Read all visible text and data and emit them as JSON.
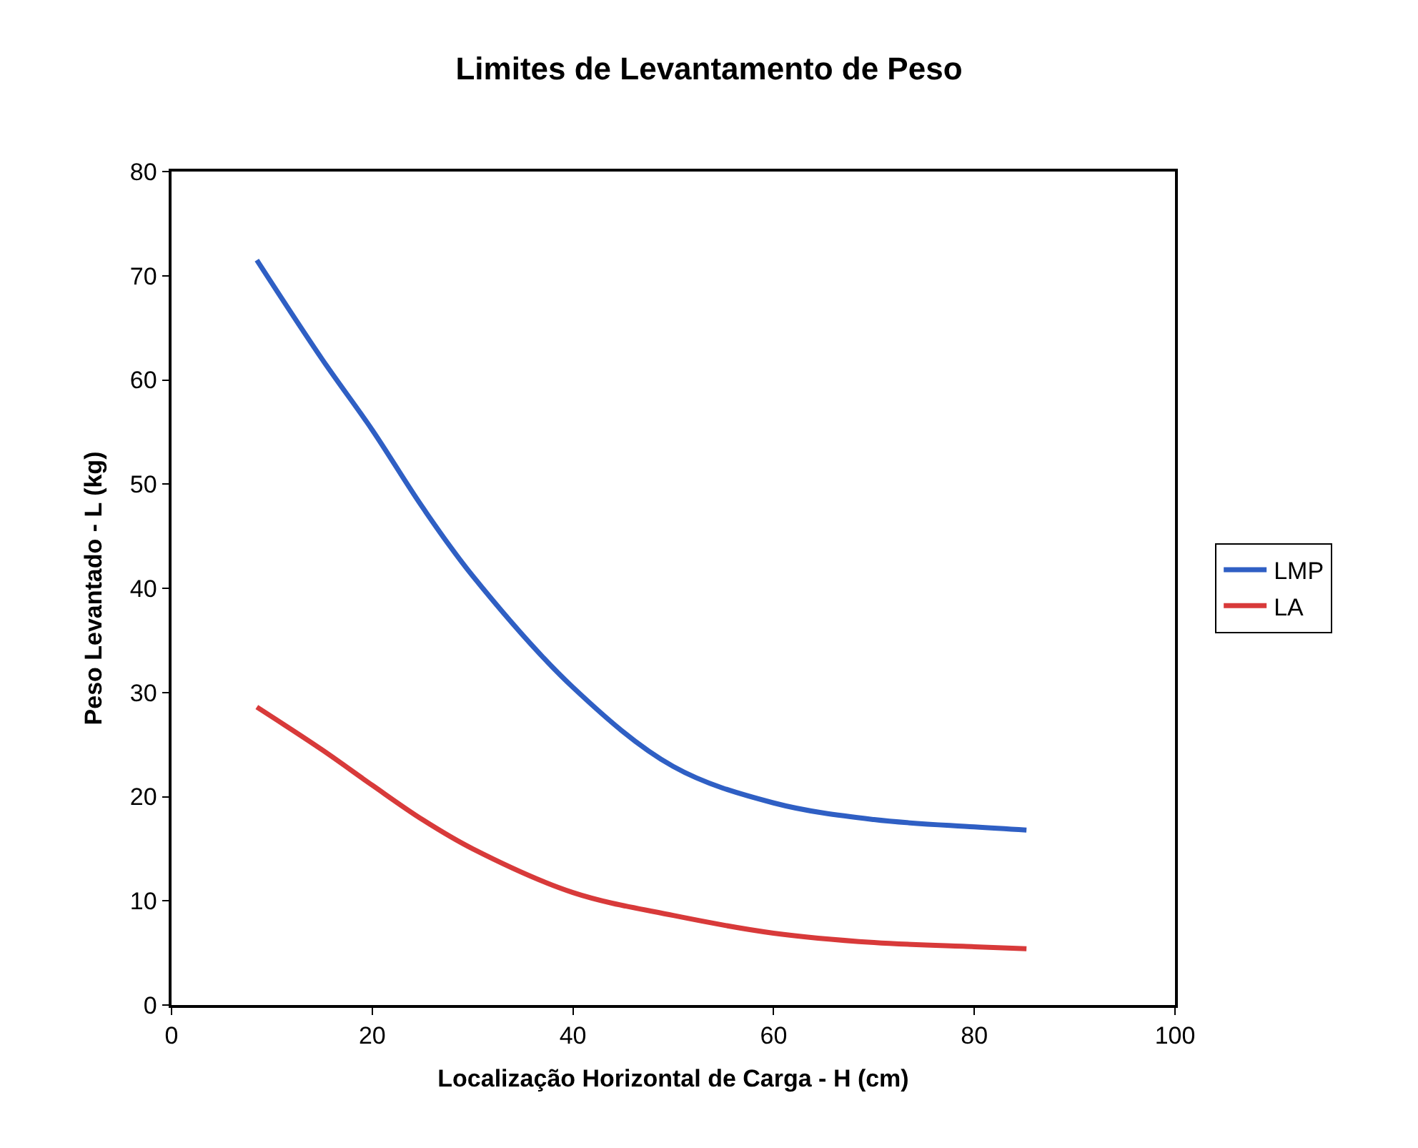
{
  "chart_data": {
    "type": "line",
    "title": "Limites de Levantamento de Peso",
    "xlabel": "Localização Horizontal de Carga - H (cm)",
    "ylabel": "Peso Levantado - L (kg)",
    "x": [
      8.5,
      15,
      20,
      25,
      30,
      40,
      50,
      60,
      70,
      80,
      85.2
    ],
    "series": [
      {
        "name": "LMP",
        "color": "#2f5fc4",
        "values": [
          71.5,
          62.0,
          55.2,
          47.8,
          41.2,
          30.5,
          22.9,
          19.4,
          17.8,
          17.1,
          16.8
        ]
      },
      {
        "name": "LA",
        "color": "#d83a3a",
        "values": [
          28.6,
          24.5,
          21.1,
          17.8,
          15.0,
          10.8,
          8.6,
          6.9,
          6.0,
          5.6,
          5.4
        ]
      }
    ],
    "xlim": [
      0,
      100
    ],
    "xticks": [
      0,
      20,
      40,
      60,
      80,
      100
    ],
    "ylim": [
      0,
      80
    ],
    "yticks": [
      0,
      10,
      20,
      30,
      40,
      50,
      60,
      70,
      80
    ],
    "grid": false,
    "legend": "right",
    "marker": "none",
    "line_style": "solid"
  }
}
